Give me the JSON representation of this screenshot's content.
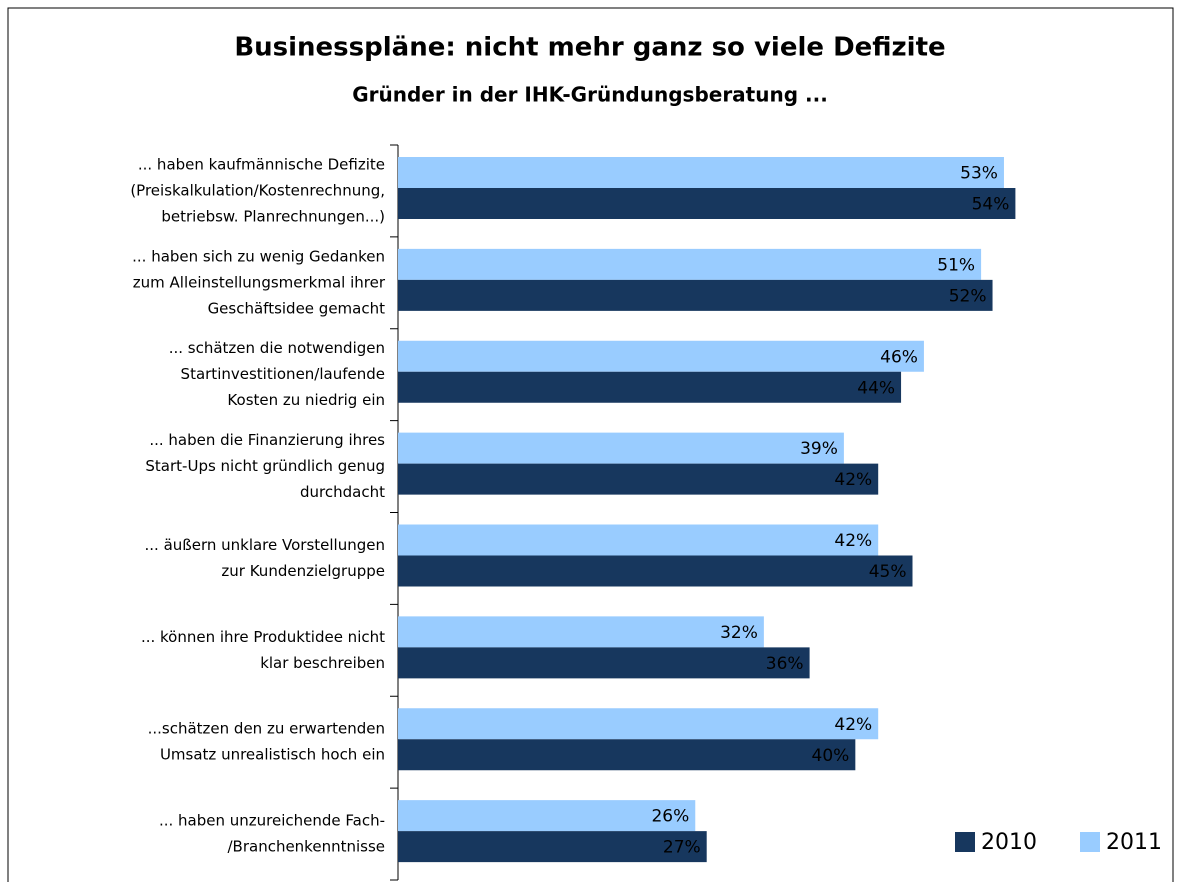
{
  "chart_data": {
    "type": "barh",
    "title": "Businesspläne: nicht mehr ganz so viele Defizite",
    "subtitle": "Gründer in der IHK-Gründungsberatung ...",
    "categories": [
      [
        "... haben kaufmännische Defizite",
        "(Preiskalkulation/Kostenrechnung,",
        "betriebsw. Planrechnungen...)"
      ],
      [
        "... haben sich zu wenig Gedanken",
        "zum Alleinstellungsmerkmal ihrer",
        "Geschäftsidee gemacht"
      ],
      [
        "... schätzen die notwendigen",
        "Startinvestitionen/laufende",
        "Kosten zu niedrig ein"
      ],
      [
        "... haben die Finanzierung ihres",
        "Start-Ups nicht gründlich genug",
        "durchdacht"
      ],
      [
        "... äußern unklare Vorstellungen",
        "zur Kundenzielgruppe"
      ],
      [
        "... können ihre Produktidee nicht",
        "klar beschreiben"
      ],
      [
        "...schätzen den zu erwartenden",
        "Umsatz unrealistisch hoch ein"
      ],
      [
        "... haben unzureichende Fach-",
        "/Branchenkenntnisse"
      ]
    ],
    "series": [
      {
        "name": "2010",
        "color": "#17375e",
        "values": [
          54,
          52,
          44,
          42,
          45,
          36,
          40,
          27
        ],
        "value_labels": [
          "54%",
          "52%",
          "44%",
          "42%",
          "45%",
          "36%",
          "40%",
          "27%"
        ]
      },
      {
        "name": "2011",
        "color": "#99ccff",
        "values": [
          53,
          51,
          46,
          39,
          42,
          32,
          42,
          26
        ],
        "value_labels": [
          "53%",
          "51%",
          "46%",
          "39%",
          "42%",
          "32%",
          "42%",
          "26%"
        ]
      }
    ],
    "xlim": [
      0,
      60
    ],
    "legend": "bottom-right"
  }
}
